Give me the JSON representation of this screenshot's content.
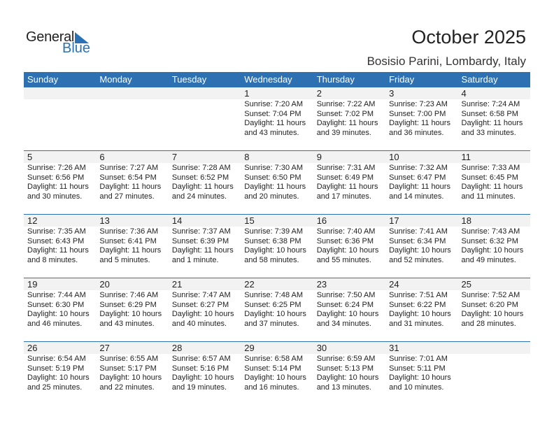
{
  "logo": {
    "text_general": "General",
    "text_blue": "Blue"
  },
  "title": "October 2025",
  "location": "Bosisio Parini, Lombardy, Italy",
  "colors": {
    "header": "#2e71b3",
    "band": "#f2f2f2"
  },
  "weekdays": [
    "Sunday",
    "Monday",
    "Tuesday",
    "Wednesday",
    "Thursday",
    "Friday",
    "Saturday"
  ],
  "weeks": [
    [
      null,
      null,
      null,
      {
        "day": "1",
        "sunrise": "Sunrise: 7:20 AM",
        "sunset": "Sunset: 7:04 PM",
        "daylight1": "Daylight: 11 hours",
        "daylight2": "and 43 minutes."
      },
      {
        "day": "2",
        "sunrise": "Sunrise: 7:22 AM",
        "sunset": "Sunset: 7:02 PM",
        "daylight1": "Daylight: 11 hours",
        "daylight2": "and 39 minutes."
      },
      {
        "day": "3",
        "sunrise": "Sunrise: 7:23 AM",
        "sunset": "Sunset: 7:00 PM",
        "daylight1": "Daylight: 11 hours",
        "daylight2": "and 36 minutes."
      },
      {
        "day": "4",
        "sunrise": "Sunrise: 7:24 AM",
        "sunset": "Sunset: 6:58 PM",
        "daylight1": "Daylight: 11 hours",
        "daylight2": "and 33 minutes."
      }
    ],
    [
      {
        "day": "5",
        "sunrise": "Sunrise: 7:26 AM",
        "sunset": "Sunset: 6:56 PM",
        "daylight1": "Daylight: 11 hours",
        "daylight2": "and 30 minutes."
      },
      {
        "day": "6",
        "sunrise": "Sunrise: 7:27 AM",
        "sunset": "Sunset: 6:54 PM",
        "daylight1": "Daylight: 11 hours",
        "daylight2": "and 27 minutes."
      },
      {
        "day": "7",
        "sunrise": "Sunrise: 7:28 AM",
        "sunset": "Sunset: 6:52 PM",
        "daylight1": "Daylight: 11 hours",
        "daylight2": "and 24 minutes."
      },
      {
        "day": "8",
        "sunrise": "Sunrise: 7:30 AM",
        "sunset": "Sunset: 6:50 PM",
        "daylight1": "Daylight: 11 hours",
        "daylight2": "and 20 minutes."
      },
      {
        "day": "9",
        "sunrise": "Sunrise: 7:31 AM",
        "sunset": "Sunset: 6:49 PM",
        "daylight1": "Daylight: 11 hours",
        "daylight2": "and 17 minutes."
      },
      {
        "day": "10",
        "sunrise": "Sunrise: 7:32 AM",
        "sunset": "Sunset: 6:47 PM",
        "daylight1": "Daylight: 11 hours",
        "daylight2": "and 14 minutes."
      },
      {
        "day": "11",
        "sunrise": "Sunrise: 7:33 AM",
        "sunset": "Sunset: 6:45 PM",
        "daylight1": "Daylight: 11 hours",
        "daylight2": "and 11 minutes."
      }
    ],
    [
      {
        "day": "12",
        "sunrise": "Sunrise: 7:35 AM",
        "sunset": "Sunset: 6:43 PM",
        "daylight1": "Daylight: 11 hours",
        "daylight2": "and 8 minutes."
      },
      {
        "day": "13",
        "sunrise": "Sunrise: 7:36 AM",
        "sunset": "Sunset: 6:41 PM",
        "daylight1": "Daylight: 11 hours",
        "daylight2": "and 5 minutes."
      },
      {
        "day": "14",
        "sunrise": "Sunrise: 7:37 AM",
        "sunset": "Sunset: 6:39 PM",
        "daylight1": "Daylight: 11 hours",
        "daylight2": "and 1 minute."
      },
      {
        "day": "15",
        "sunrise": "Sunrise: 7:39 AM",
        "sunset": "Sunset: 6:38 PM",
        "daylight1": "Daylight: 10 hours",
        "daylight2": "and 58 minutes."
      },
      {
        "day": "16",
        "sunrise": "Sunrise: 7:40 AM",
        "sunset": "Sunset: 6:36 PM",
        "daylight1": "Daylight: 10 hours",
        "daylight2": "and 55 minutes."
      },
      {
        "day": "17",
        "sunrise": "Sunrise: 7:41 AM",
        "sunset": "Sunset: 6:34 PM",
        "daylight1": "Daylight: 10 hours",
        "daylight2": "and 52 minutes."
      },
      {
        "day": "18",
        "sunrise": "Sunrise: 7:43 AM",
        "sunset": "Sunset: 6:32 PM",
        "daylight1": "Daylight: 10 hours",
        "daylight2": "and 49 minutes."
      }
    ],
    [
      {
        "day": "19",
        "sunrise": "Sunrise: 7:44 AM",
        "sunset": "Sunset: 6:30 PM",
        "daylight1": "Daylight: 10 hours",
        "daylight2": "and 46 minutes."
      },
      {
        "day": "20",
        "sunrise": "Sunrise: 7:46 AM",
        "sunset": "Sunset: 6:29 PM",
        "daylight1": "Daylight: 10 hours",
        "daylight2": "and 43 minutes."
      },
      {
        "day": "21",
        "sunrise": "Sunrise: 7:47 AM",
        "sunset": "Sunset: 6:27 PM",
        "daylight1": "Daylight: 10 hours",
        "daylight2": "and 40 minutes."
      },
      {
        "day": "22",
        "sunrise": "Sunrise: 7:48 AM",
        "sunset": "Sunset: 6:25 PM",
        "daylight1": "Daylight: 10 hours",
        "daylight2": "and 37 minutes."
      },
      {
        "day": "23",
        "sunrise": "Sunrise: 7:50 AM",
        "sunset": "Sunset: 6:24 PM",
        "daylight1": "Daylight: 10 hours",
        "daylight2": "and 34 minutes."
      },
      {
        "day": "24",
        "sunrise": "Sunrise: 7:51 AM",
        "sunset": "Sunset: 6:22 PM",
        "daylight1": "Daylight: 10 hours",
        "daylight2": "and 31 minutes."
      },
      {
        "day": "25",
        "sunrise": "Sunrise: 7:52 AM",
        "sunset": "Sunset: 6:20 PM",
        "daylight1": "Daylight: 10 hours",
        "daylight2": "and 28 minutes."
      }
    ],
    [
      {
        "day": "26",
        "sunrise": "Sunrise: 6:54 AM",
        "sunset": "Sunset: 5:19 PM",
        "daylight1": "Daylight: 10 hours",
        "daylight2": "and 25 minutes."
      },
      {
        "day": "27",
        "sunrise": "Sunrise: 6:55 AM",
        "sunset": "Sunset: 5:17 PM",
        "daylight1": "Daylight: 10 hours",
        "daylight2": "and 22 minutes."
      },
      {
        "day": "28",
        "sunrise": "Sunrise: 6:57 AM",
        "sunset": "Sunset: 5:16 PM",
        "daylight1": "Daylight: 10 hours",
        "daylight2": "and 19 minutes."
      },
      {
        "day": "29",
        "sunrise": "Sunrise: 6:58 AM",
        "sunset": "Sunset: 5:14 PM",
        "daylight1": "Daylight: 10 hours",
        "daylight2": "and 16 minutes."
      },
      {
        "day": "30",
        "sunrise": "Sunrise: 6:59 AM",
        "sunset": "Sunset: 5:13 PM",
        "daylight1": "Daylight: 10 hours",
        "daylight2": "and 13 minutes."
      },
      {
        "day": "31",
        "sunrise": "Sunrise: 7:01 AM",
        "sunset": "Sunset: 5:11 PM",
        "daylight1": "Daylight: 10 hours",
        "daylight2": "and 10 minutes."
      },
      null
    ]
  ]
}
